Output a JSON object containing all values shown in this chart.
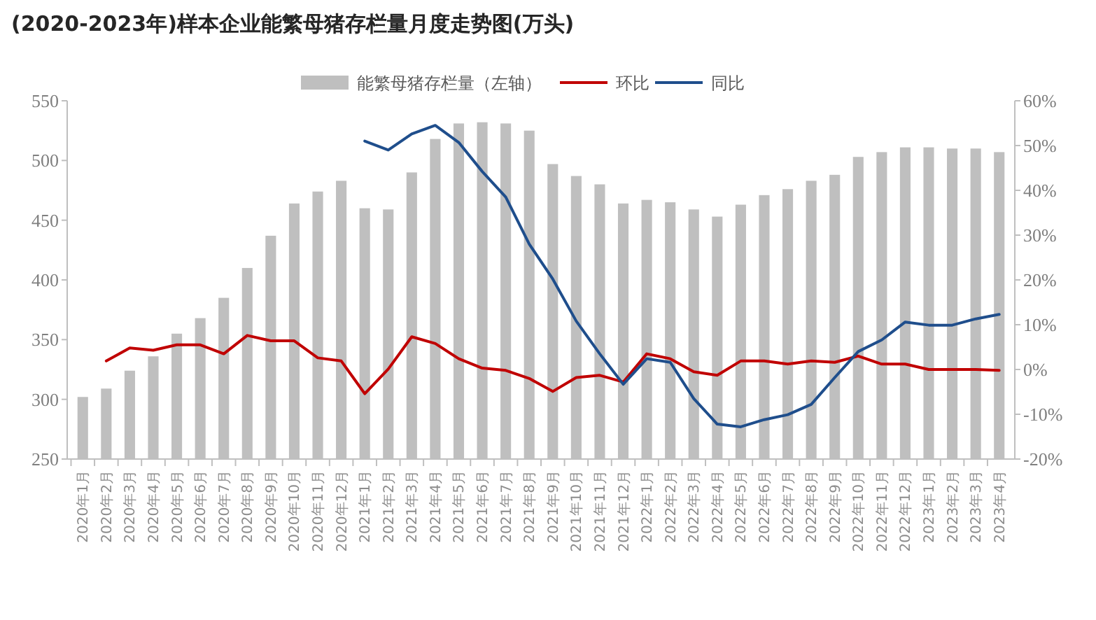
{
  "chart_data": {
    "type": "bar",
    "title": "(2020-2023年)样本企业能繁母猪存栏量月度走势图(万头)",
    "categories": [
      "2020年1月",
      "2020年2月",
      "2020年3月",
      "2020年4月",
      "2020年5月",
      "2020年6月",
      "2020年7月",
      "2020年8月",
      "2020年9月",
      "2020年10月",
      "2020年11月",
      "2020年12月",
      "2021年1月",
      "2021年2月",
      "2021年3月",
      "2021年4月",
      "2021年5月",
      "2021年6月",
      "2021年7月",
      "2021年8月",
      "2021年9月",
      "2021年10月",
      "2021年11月",
      "2021年12月",
      "2022年1月",
      "2022年2月",
      "2022年3月",
      "2022年4月",
      "2022年5月",
      "2022年6月",
      "2022年7月",
      "2022年8月",
      "2022年9月",
      "2022年10月",
      "2022年11月",
      "2022年12月",
      "2023年1月",
      "2023年2月",
      "2023年3月",
      "2023年4月"
    ],
    "series": [
      {
        "name": "能繁母猪存栏量（左轴）",
        "color": "#bfbfbf",
        "values": [
          302,
          309,
          324,
          336,
          355,
          368,
          385,
          410,
          437,
          464,
          474,
          483,
          460,
          459,
          490,
          518,
          531,
          532,
          531,
          525,
          497,
          487,
          480,
          464,
          467,
          465,
          459,
          453,
          463,
          471,
          476,
          483,
          488,
          503,
          507,
          511,
          511,
          510,
          510,
          507
        ]
      },
      {
        "name": "环比",
        "type": "line",
        "axis": "y2",
        "color": "#c00000",
        "values": [
          null,
          1.9,
          4.8,
          4.3,
          5.5,
          5.5,
          3.5,
          7.6,
          6.4,
          6.4,
          2.6,
          1.9,
          -5.4,
          0.1,
          7.3,
          5.8,
          2.4,
          0.3,
          -0.2,
          -2.0,
          -4.9,
          -1.8,
          -1.3,
          -2.8,
          3.5,
          2.4,
          -0.5,
          -1.3,
          1.9,
          1.9,
          1.2,
          1.9,
          1.6,
          3.0,
          1.2,
          1.2,
          0,
          0,
          0,
          -0.2
        ]
      },
      {
        "name": "同比",
        "type": "line",
        "axis": "y2",
        "color": "#1f4e8c",
        "values": [
          null,
          null,
          null,
          null,
          null,
          null,
          null,
          null,
          null,
          null,
          null,
          null,
          51,
          49,
          52.6,
          54.5,
          50.7,
          44.2,
          38.5,
          28,
          20.2,
          10.8,
          3.5,
          -3.3,
          2.4,
          1.6,
          -6.5,
          -12.2,
          -12.8,
          -11.2,
          -10.1,
          -7.8,
          -1.8,
          4.0,
          6.6,
          10.6,
          9.9,
          9.9,
          11.3,
          12.3
        ]
      }
    ],
    "ylim": [
      250,
      550
    ],
    "yticks": [
      250,
      300,
      350,
      400,
      450,
      500,
      550
    ],
    "y2lim": [
      -20,
      60
    ],
    "y2ticks": [
      {
        "value": -20,
        "label": "-20%"
      },
      {
        "value": -10,
        "label": "-10%"
      },
      {
        "value": 0,
        "label": "0%"
      },
      {
        "value": 10,
        "label": "10%"
      },
      {
        "value": 20,
        "label": "20%"
      },
      {
        "value": 30,
        "label": "30%"
      },
      {
        "value": 40,
        "label": "40%"
      },
      {
        "value": 50,
        "label": "50%"
      },
      {
        "value": 60,
        "label": "60%"
      }
    ],
    "grid": false,
    "legend": "top",
    "marker": "none",
    "line_style": "solid"
  }
}
